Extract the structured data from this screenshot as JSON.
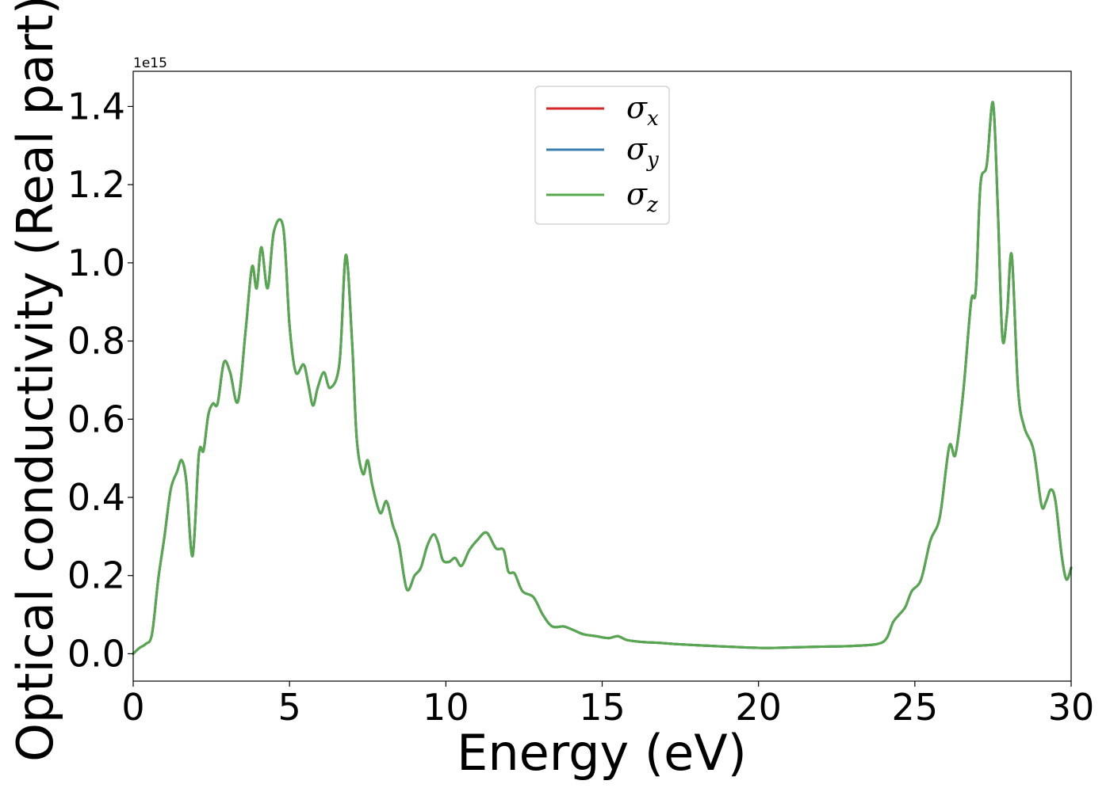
{
  "chart_data": {
    "type": "line",
    "xlabel": "Energy (eV)",
    "ylabel": "Optical conductivity (Real part)",
    "y_offset_label": "1e15",
    "xlim": [
      0,
      30
    ],
    "ylim": [
      -0.07,
      1.49
    ],
    "xticks": [
      0,
      5,
      10,
      15,
      20,
      25,
      30
    ],
    "xtick_labels": [
      "0",
      "5",
      "10",
      "15",
      "20",
      "25",
      "30"
    ],
    "yticks": [
      0.0,
      0.2,
      0.4,
      0.6,
      0.8,
      1.0,
      1.2,
      1.4
    ],
    "ytick_labels": [
      "0.0",
      "0.2",
      "0.4",
      "0.6",
      "0.8",
      "1.0",
      "1.2",
      "1.4"
    ],
    "grid": false,
    "legend_position": "top-center",
    "x": [
      0,
      0.2,
      0.4,
      0.6,
      0.8,
      1.0,
      1.2,
      1.4,
      1.55,
      1.7,
      1.9,
      2.1,
      2.25,
      2.4,
      2.55,
      2.7,
      2.9,
      3.1,
      3.35,
      3.6,
      3.8,
      3.95,
      4.1,
      4.3,
      4.5,
      4.8,
      5.0,
      5.2,
      5.45,
      5.6,
      5.75,
      5.9,
      6.1,
      6.3,
      6.6,
      6.8,
      7.0,
      7.15,
      7.35,
      7.5,
      7.65,
      7.9,
      8.1,
      8.3,
      8.5,
      8.75,
      9.0,
      9.2,
      9.4,
      9.6,
      9.75,
      9.9,
      10.1,
      10.3,
      10.5,
      10.75,
      11.0,
      11.3,
      11.6,
      11.85,
      12.0,
      12.2,
      12.45,
      12.8,
      13.1,
      13.4,
      13.75,
      13.95,
      14.1,
      14.4,
      14.8,
      15.2,
      15.5,
      15.8,
      16.3,
      16.8,
      17.3,
      18.0,
      19.0,
      20.0,
      20.5,
      21.0,
      22.0,
      23.0,
      23.8,
      24.1,
      24.3,
      24.5,
      24.7,
      24.9,
      25.2,
      25.5,
      25.8,
      26.1,
      26.3,
      26.55,
      26.8,
      26.95,
      27.1,
      27.3,
      27.5,
      27.65,
      27.8,
      27.95,
      28.1,
      28.3,
      28.5,
      28.8,
      29.05,
      29.2,
      29.35,
      29.5,
      29.7,
      29.85,
      30.0
    ],
    "series": [
      {
        "name": "σ_x",
        "label_main": "σ",
        "label_sub": "x",
        "color": "#d62728",
        "values": [
          0.0,
          0.015,
          0.025,
          0.05,
          0.19,
          0.3,
          0.42,
          0.465,
          0.495,
          0.44,
          0.25,
          0.51,
          0.52,
          0.61,
          0.64,
          0.64,
          0.745,
          0.72,
          0.645,
          0.83,
          0.99,
          0.935,
          1.04,
          0.935,
          1.08,
          1.09,
          0.84,
          0.72,
          0.74,
          0.69,
          0.635,
          0.68,
          0.72,
          0.68,
          0.745,
          1.02,
          0.8,
          0.55,
          0.46,
          0.495,
          0.43,
          0.36,
          0.39,
          0.33,
          0.28,
          0.165,
          0.2,
          0.22,
          0.275,
          0.305,
          0.285,
          0.24,
          0.235,
          0.245,
          0.225,
          0.265,
          0.29,
          0.31,
          0.27,
          0.265,
          0.21,
          0.205,
          0.16,
          0.145,
          0.1,
          0.07,
          0.07,
          0.065,
          0.06,
          0.05,
          0.045,
          0.04,
          0.045,
          0.035,
          0.03,
          0.028,
          0.025,
          0.022,
          0.018,
          0.015,
          0.015,
          0.016,
          0.018,
          0.02,
          0.025,
          0.04,
          0.08,
          0.1,
          0.12,
          0.16,
          0.19,
          0.29,
          0.35,
          0.53,
          0.51,
          0.67,
          0.9,
          0.93,
          1.2,
          1.25,
          1.41,
          1.15,
          0.81,
          0.87,
          1.02,
          0.68,
          0.58,
          0.52,
          0.38,
          0.39,
          0.42,
          0.39,
          0.25,
          0.19,
          0.22
        ]
      },
      {
        "name": "σ_y",
        "label_main": "σ",
        "label_sub": "y",
        "color": "#3a7fb0",
        "values": [
          0.0,
          0.015,
          0.025,
          0.05,
          0.19,
          0.3,
          0.42,
          0.465,
          0.495,
          0.44,
          0.25,
          0.51,
          0.52,
          0.61,
          0.64,
          0.64,
          0.745,
          0.72,
          0.645,
          0.83,
          0.99,
          0.935,
          1.04,
          0.935,
          1.08,
          1.09,
          0.84,
          0.72,
          0.74,
          0.69,
          0.635,
          0.68,
          0.72,
          0.68,
          0.745,
          1.02,
          0.8,
          0.55,
          0.46,
          0.495,
          0.43,
          0.36,
          0.39,
          0.33,
          0.28,
          0.165,
          0.2,
          0.22,
          0.275,
          0.305,
          0.285,
          0.24,
          0.235,
          0.245,
          0.225,
          0.265,
          0.29,
          0.31,
          0.27,
          0.265,
          0.21,
          0.205,
          0.16,
          0.145,
          0.1,
          0.07,
          0.07,
          0.065,
          0.06,
          0.05,
          0.045,
          0.04,
          0.045,
          0.035,
          0.03,
          0.028,
          0.025,
          0.022,
          0.018,
          0.015,
          0.015,
          0.016,
          0.018,
          0.02,
          0.025,
          0.04,
          0.08,
          0.1,
          0.12,
          0.16,
          0.19,
          0.29,
          0.35,
          0.53,
          0.51,
          0.67,
          0.9,
          0.93,
          1.2,
          1.25,
          1.41,
          1.15,
          0.81,
          0.87,
          1.02,
          0.68,
          0.58,
          0.52,
          0.38,
          0.39,
          0.42,
          0.39,
          0.25,
          0.19,
          0.22
        ]
      },
      {
        "name": "σ_z",
        "label_main": "σ",
        "label_sub": "z",
        "color": "#55a84e",
        "values": [
          0.0,
          0.015,
          0.025,
          0.05,
          0.19,
          0.3,
          0.42,
          0.465,
          0.495,
          0.44,
          0.25,
          0.51,
          0.52,
          0.61,
          0.64,
          0.64,
          0.745,
          0.72,
          0.645,
          0.83,
          0.99,
          0.935,
          1.04,
          0.935,
          1.08,
          1.09,
          0.84,
          0.72,
          0.74,
          0.69,
          0.635,
          0.68,
          0.72,
          0.68,
          0.745,
          1.02,
          0.8,
          0.55,
          0.46,
          0.495,
          0.43,
          0.36,
          0.39,
          0.33,
          0.28,
          0.165,
          0.2,
          0.22,
          0.275,
          0.305,
          0.285,
          0.24,
          0.235,
          0.245,
          0.225,
          0.265,
          0.29,
          0.31,
          0.27,
          0.265,
          0.21,
          0.205,
          0.16,
          0.145,
          0.1,
          0.07,
          0.07,
          0.065,
          0.06,
          0.05,
          0.045,
          0.04,
          0.045,
          0.035,
          0.03,
          0.028,
          0.025,
          0.022,
          0.018,
          0.015,
          0.015,
          0.016,
          0.018,
          0.02,
          0.025,
          0.04,
          0.08,
          0.1,
          0.12,
          0.16,
          0.19,
          0.29,
          0.35,
          0.53,
          0.51,
          0.67,
          0.9,
          0.93,
          1.2,
          1.25,
          1.41,
          1.15,
          0.81,
          0.87,
          1.02,
          0.68,
          0.58,
          0.52,
          0.38,
          0.39,
          0.42,
          0.39,
          0.25,
          0.19,
          0.22
        ]
      }
    ]
  }
}
